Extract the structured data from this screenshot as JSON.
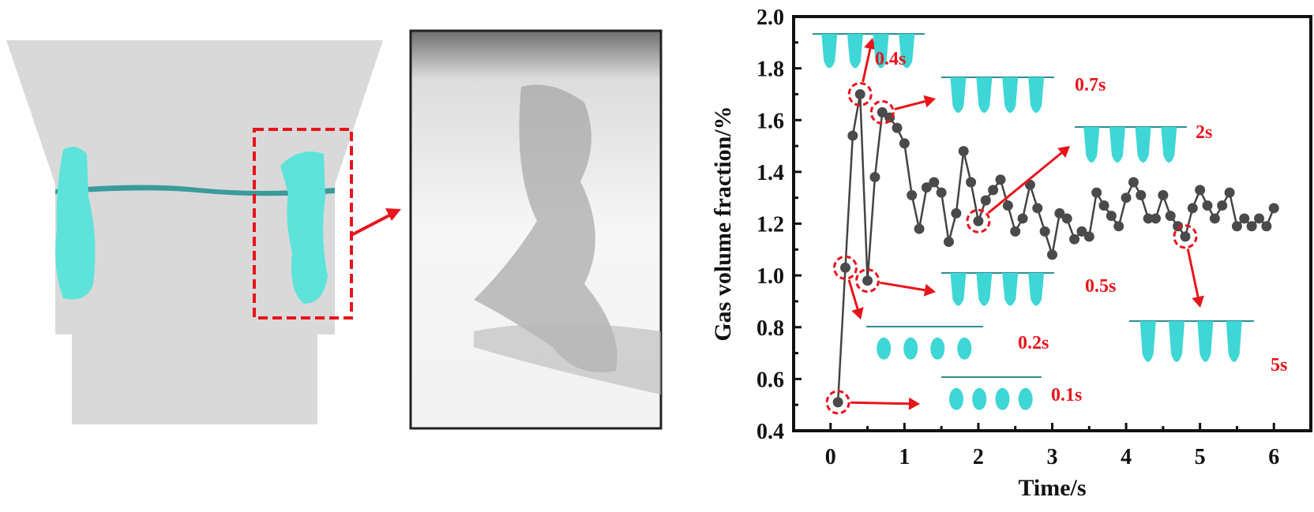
{
  "colors": {
    "accent": "#e8141b",
    "series": "#444444",
    "gas": "#3fd6d6",
    "cfd_background": "#d9d9d9"
  },
  "left_panel": {
    "highlight_box": "dashed-red",
    "zoom_arrow": "arrow-right"
  },
  "chart_data": {
    "type": "line",
    "xlabel": "Time/s",
    "ylabel": "Gas volume fraction/%",
    "xlim": [
      -0.5,
      6.5
    ],
    "ylim": [
      0.4,
      2.0
    ],
    "xticks": [
      "0",
      "1",
      "2",
      "3",
      "4",
      "5",
      "6"
    ],
    "yticks": [
      "0.4",
      "0.6",
      "0.8",
      "1.0",
      "1.2",
      "1.4",
      "1.6",
      "1.8",
      "2.0"
    ],
    "grid": false,
    "x": [
      0.1,
      0.2,
      0.3,
      0.4,
      0.5,
      0.6,
      0.7,
      0.8,
      0.9,
      1.0,
      1.1,
      1.2,
      1.3,
      1.4,
      1.5,
      1.6,
      1.7,
      1.8,
      1.9,
      2.0,
      2.1,
      2.2,
      2.3,
      2.4,
      2.5,
      2.6,
      2.7,
      2.8,
      2.9,
      3.0,
      3.1,
      3.2,
      3.3,
      3.4,
      3.5,
      3.6,
      3.7,
      3.8,
      3.9,
      4.0,
      4.1,
      4.2,
      4.3,
      4.4,
      4.5,
      4.6,
      4.7,
      4.8,
      4.9,
      5.0,
      5.1,
      5.2,
      5.3,
      5.4,
      5.5,
      5.6,
      5.7,
      5.8,
      5.9,
      6.0
    ],
    "values": [
      0.51,
      1.03,
      1.54,
      1.7,
      0.98,
      1.38,
      1.63,
      1.61,
      1.57,
      1.51,
      1.31,
      1.18,
      1.34,
      1.36,
      1.32,
      1.13,
      1.24,
      1.48,
      1.36,
      1.21,
      1.29,
      1.33,
      1.37,
      1.27,
      1.17,
      1.22,
      1.35,
      1.26,
      1.17,
      1.08,
      1.24,
      1.22,
      1.14,
      1.17,
      1.15,
      1.32,
      1.27,
      1.23,
      1.19,
      1.3,
      1.36,
      1.31,
      1.22,
      1.22,
      1.31,
      1.23,
      1.19,
      1.15,
      1.26,
      1.33,
      1.27,
      1.22,
      1.27,
      1.32,
      1.19,
      1.22,
      1.19,
      1.22,
      1.19,
      1.26
    ],
    "annotations": [
      {
        "t": 0.4,
        "label": "0.4s"
      },
      {
        "t": 0.7,
        "label": "0.7s"
      },
      {
        "t": 2.0,
        "label": "2s"
      },
      {
        "t": 0.5,
        "label": "0.5s"
      },
      {
        "t": 0.2,
        "label": "0.2s"
      },
      {
        "t": 0.1,
        "label": "0.1s"
      },
      {
        "t": 4.8,
        "label": "5s"
      }
    ]
  }
}
